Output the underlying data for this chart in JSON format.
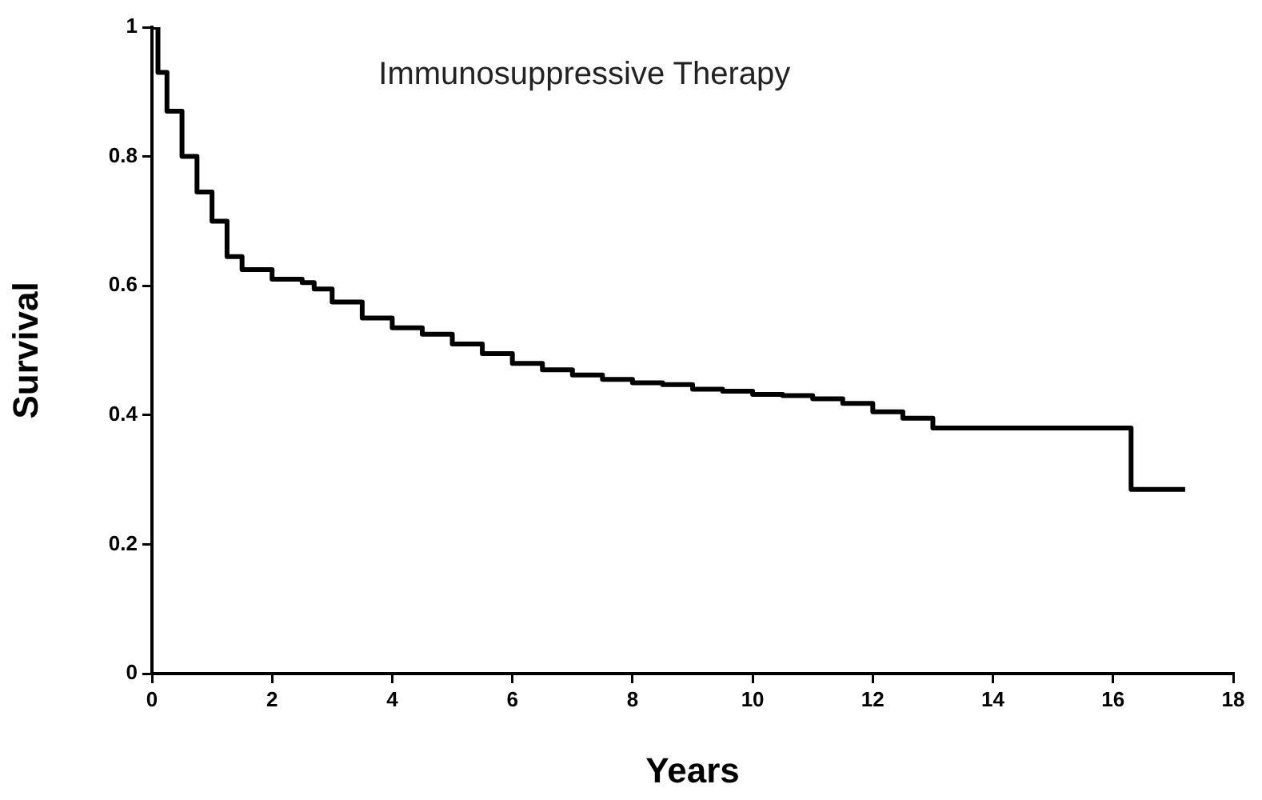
{
  "chart_data": {
    "type": "step",
    "title": "Immunosuppressive Therapy",
    "xlabel": "Years",
    "ylabel": "Survival",
    "x": [
      0,
      0.1,
      0.25,
      0.5,
      0.75,
      1,
      1.25,
      1.5,
      2,
      2.5,
      2.7,
      3,
      3.5,
      4,
      4.5,
      5,
      5.5,
      6,
      6.5,
      7,
      7.5,
      8,
      8.5,
      9,
      9.5,
      10,
      10.5,
      11,
      11.5,
      12,
      12.5,
      13,
      14,
      15,
      16.3,
      17.2
    ],
    "values": [
      1,
      0.93,
      0.87,
      0.8,
      0.745,
      0.7,
      0.645,
      0.625,
      0.61,
      0.605,
      0.595,
      0.575,
      0.55,
      0.535,
      0.525,
      0.51,
      0.495,
      0.48,
      0.47,
      0.462,
      0.455,
      0.45,
      0.447,
      0.44,
      0.437,
      0.432,
      0.43,
      0.425,
      0.418,
      0.405,
      0.395,
      0.38,
      0.38,
      0.38,
      0.285,
      0.285
    ],
    "color": "#000000",
    "xlim": [
      0,
      18
    ],
    "xticks": [
      0,
      2,
      4,
      6,
      8,
      10,
      12,
      14,
      16,
      18
    ],
    "ylim": [
      0,
      1
    ],
    "yticks": [
      0,
      0.2,
      0.4,
      0.6,
      0.8,
      1
    ],
    "grid": false,
    "legend": false
  }
}
